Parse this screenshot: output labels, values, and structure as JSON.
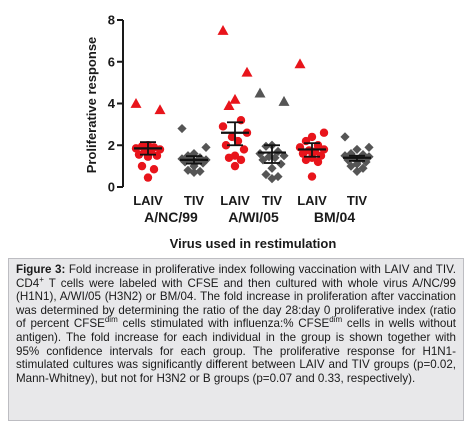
{
  "chart_data": {
    "type": "scatter",
    "ylabel": "Proliferative response",
    "xlabel": "Virus used in restimulation",
    "ylim": [
      0,
      8
    ],
    "yticks": [
      0,
      2,
      4,
      6,
      8
    ],
    "colors": {
      "LAIV": "#e8141b",
      "TIV": "#555555"
    },
    "group_labels": [
      "A/NC/99",
      "A/WI/05",
      "BM/04"
    ],
    "columns": [
      {
        "name": "LAIV",
        "group": "A/NC/99",
        "mean": 1.85,
        "ci": [
          1.55,
          2.15
        ],
        "values": [
          4.0,
          3.7,
          2.0,
          1.95,
          1.9,
          1.85,
          1.8,
          1.75,
          1.7,
          1.55,
          1.5,
          1.45,
          1.0,
          0.85,
          0.45
        ]
      },
      {
        "name": "TIV",
        "group": "A/NC/99",
        "mean": 1.3,
        "ci": [
          1.12,
          1.48
        ],
        "values": [
          2.8,
          1.9,
          1.6,
          1.5,
          1.4,
          1.35,
          1.3,
          1.3,
          1.25,
          1.2,
          1.15,
          1.0,
          0.8,
          0.75,
          0.7
        ]
      },
      {
        "name": "LAIV",
        "group": "A/WI/05",
        "mean": 2.6,
        "ci": [
          2.0,
          3.1
        ],
        "values": [
          7.5,
          5.5,
          4.2,
          3.9,
          3.2,
          2.9,
          2.6,
          2.4,
          2.2,
          2.0,
          1.8,
          1.5,
          1.4,
          1.3,
          1.0
        ]
      },
      {
        "name": "TIV",
        "group": "A/WI/05",
        "mean": 1.65,
        "ci": [
          1.15,
          2.0
        ],
        "values": [
          4.5,
          4.1,
          2.0,
          1.95,
          1.7,
          1.6,
          1.5,
          1.45,
          1.4,
          1.3,
          1.1,
          0.9,
          0.6,
          0.5,
          0.4
        ]
      },
      {
        "name": "LAIV",
        "group": "BM/04",
        "mean": 1.8,
        "ci": [
          1.45,
          2.1
        ],
        "values": [
          5.9,
          2.6,
          2.4,
          2.2,
          2.0,
          1.9,
          1.8,
          1.75,
          1.7,
          1.6,
          1.5,
          1.4,
          1.3,
          1.2,
          0.5
        ]
      },
      {
        "name": "TIV",
        "group": "BM/04",
        "mean": 1.4,
        "ci": [
          1.25,
          1.5
        ],
        "values": [
          2.4,
          1.9,
          1.8,
          1.6,
          1.55,
          1.5,
          1.45,
          1.4,
          1.35,
          1.3,
          1.2,
          1.1,
          1.0,
          0.9,
          0.75
        ]
      }
    ]
  },
  "caption": {
    "label": "Figure 3:",
    "part1": " Fold increase in proliferative index following vaccination with LAIV and TIV. CD4",
    "sup1": "+",
    "part2": " T cells were labeled with CFSE and then cultured with whole virus A/NC/99 (H1N1), A/WI/05 (H3N2) or BM/04. The fold increase in proliferation after vaccination was determined by determining the ratio of the day 28:day 0 proliferative index (ratio of percent CFSE",
    "sup2": "dim",
    "part3": " cells stimulated with influenza:% CFSE",
    "sup3": "dim",
    "part4": " cells in wells without antigen). The fold increase for each individual in the group is shown together with 95% confidence intervals for each group. The proliferative response for H1N1-stimulated cultures was significantly different between LAIV and TIV groups (p=0.02, Mann-Whitney), but not for H3N2 or B groups (p=0.07 and 0.33, respectively)."
  }
}
